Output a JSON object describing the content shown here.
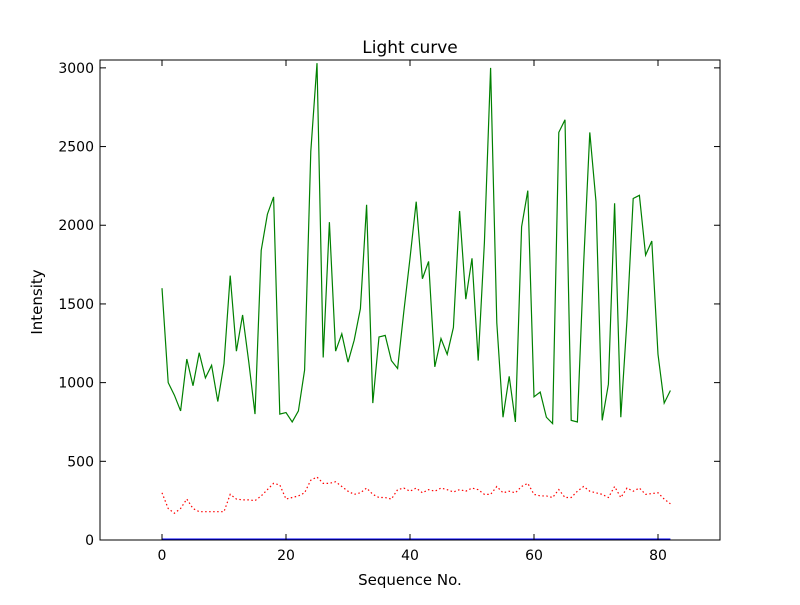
{
  "chart_data": {
    "type": "line",
    "title": "Light curve",
    "xlabel": "Sequence No.",
    "ylabel": "Intensity",
    "xlim": [
      -10,
      90
    ],
    "ylim": [
      0,
      3050
    ],
    "xticks": [
      0,
      20,
      40,
      60,
      80
    ],
    "yticks": [
      0,
      500,
      1000,
      1500,
      2000,
      2500,
      3000
    ],
    "grid": false,
    "legend": "none",
    "x": [
      0,
      1,
      2,
      3,
      4,
      5,
      6,
      7,
      8,
      9,
      10,
      11,
      12,
      13,
      14,
      15,
      16,
      17,
      18,
      19,
      20,
      21,
      22,
      23,
      24,
      25,
      26,
      27,
      28,
      29,
      30,
      31,
      32,
      33,
      34,
      35,
      36,
      37,
      38,
      39,
      40,
      41,
      42,
      43,
      44,
      45,
      46,
      47,
      48,
      49,
      50,
      51,
      52,
      53,
      54,
      55,
      56,
      57,
      58,
      59,
      60,
      61,
      62,
      63,
      64,
      65,
      66,
      67,
      68,
      69,
      70,
      71,
      72,
      73,
      74,
      75,
      76,
      77,
      78,
      79,
      80,
      81,
      82
    ],
    "series": [
      {
        "style": "solid",
        "color": "#008000",
        "values": [
          1600,
          1000,
          920,
          820,
          1150,
          980,
          1190,
          1030,
          1110,
          880,
          1120,
          1680,
          1200,
          1430,
          1130,
          800,
          1840,
          2070,
          2180,
          800,
          810,
          750,
          820,
          1080,
          2470,
          3030,
          1160,
          2020,
          1200,
          1310,
          1130,
          1270,
          1470,
          2130,
          870,
          1290,
          1300,
          1140,
          1090,
          1450,
          1790,
          2150,
          1660,
          1770,
          1100,
          1280,
          1180,
          1350,
          2090,
          1530,
          1790,
          1140,
          1890,
          3000,
          1380,
          780,
          1040,
          750,
          1990,
          2220,
          910,
          940,
          780,
          740,
          2590,
          2670,
          760,
          750,
          1750,
          2590,
          2150,
          760,
          990,
          2140,
          780,
          1400,
          2170,
          2190,
          1810,
          1900,
          1180,
          870,
          950
        ]
      },
      {
        "style": "dotted",
        "color": "#ff0000",
        "values": [
          300,
          200,
          170,
          200,
          260,
          200,
          180,
          180,
          180,
          180,
          180,
          290,
          260,
          255,
          255,
          250,
          280,
          320,
          360,
          350,
          260,
          270,
          280,
          300,
          380,
          400,
          360,
          360,
          370,
          340,
          310,
          290,
          300,
          330,
          290,
          270,
          270,
          260,
          320,
          330,
          310,
          330,
          300,
          320,
          310,
          330,
          320,
          305,
          320,
          310,
          330,
          320,
          290,
          290,
          340,
          300,
          310,
          300,
          340,
          360,
          290,
          280,
          280,
          270,
          320,
          270,
          270,
          310,
          340,
          310,
          300,
          290,
          270,
          340,
          270,
          330,
          310,
          330,
          290,
          295,
          300,
          260,
          230
        ]
      },
      {
        "style": "solid",
        "color": "#0000ff",
        "values": [
          0,
          0,
          0,
          0,
          0,
          0,
          0,
          0,
          0,
          0,
          0,
          0,
          0,
          0,
          0,
          0,
          0,
          0,
          0,
          0,
          0,
          0,
          0,
          0,
          0,
          0,
          0,
          0,
          0,
          0,
          0,
          0,
          0,
          0,
          0,
          0,
          0,
          0,
          0,
          0,
          0,
          0,
          0,
          0,
          0,
          0,
          0,
          0,
          0,
          0,
          0,
          0,
          0,
          0,
          0,
          0,
          0,
          0,
          0,
          0,
          0,
          0,
          0,
          0,
          0,
          0,
          0,
          0,
          0,
          0,
          0,
          0,
          0,
          0,
          0,
          0,
          0,
          0,
          0,
          0,
          0,
          0,
          0
        ]
      }
    ]
  }
}
